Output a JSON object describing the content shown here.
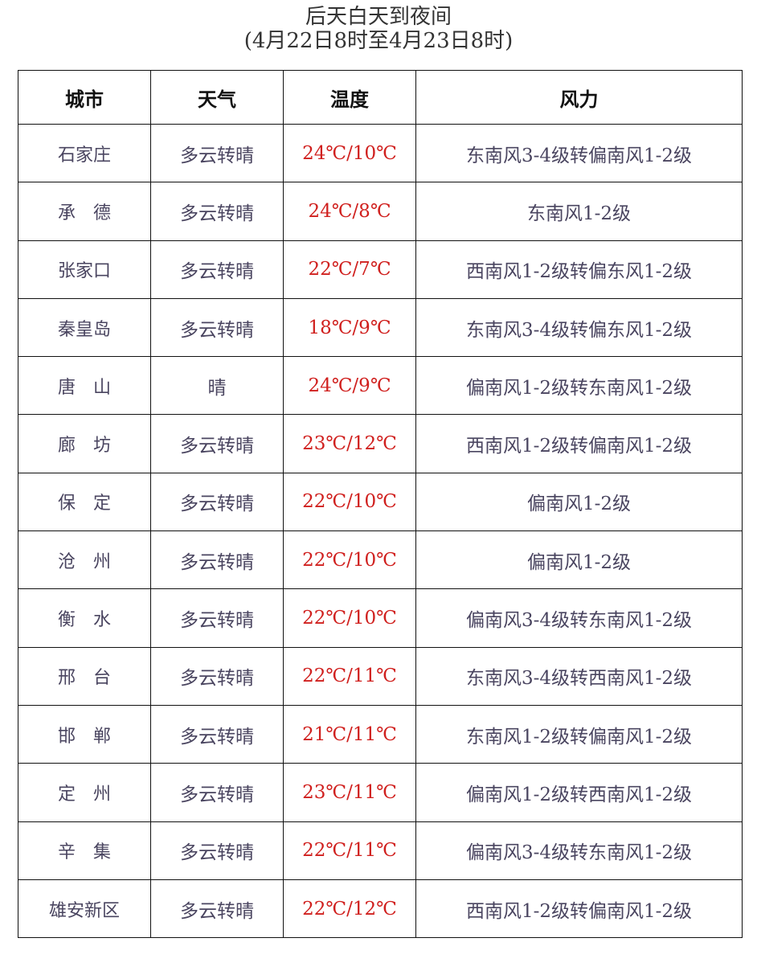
{
  "title": "后天白天到夜间",
  "subtitle": "(4月22日8时至4月23日8时)",
  "colors": {
    "temperature": "#d0201e",
    "text": "#4a4560",
    "border": "#111111"
  },
  "table": {
    "headers": [
      "城市",
      "天气",
      "温度",
      "风力"
    ],
    "rows": [
      {
        "city": "石家庄",
        "weather": "多云转晴",
        "temp": "24℃/10℃",
        "wind": "东南风3-4级转偏南风1-2级"
      },
      {
        "city": "承　德",
        "weather": "多云转晴",
        "temp": "24℃/8℃",
        "wind": "东南风1-2级"
      },
      {
        "city": "张家口",
        "weather": "多云转晴",
        "temp": "22℃/7℃",
        "wind": "西南风1-2级转偏东风1-2级"
      },
      {
        "city": "秦皇岛",
        "weather": "多云转晴",
        "temp": "18℃/9℃",
        "wind": "东南风3-4级转偏东风1-2级"
      },
      {
        "city": "唐　山",
        "weather": "晴",
        "temp": "24℃/9℃",
        "wind": "偏南风1-2级转东南风1-2级"
      },
      {
        "city": "廊　坊",
        "weather": "多云转晴",
        "temp": "23℃/12℃",
        "wind": "西南风1-2级转偏南风1-2级"
      },
      {
        "city": "保　定",
        "weather": "多云转晴",
        "temp": "22℃/10℃",
        "wind": "偏南风1-2级"
      },
      {
        "city": "沧　州",
        "weather": "多云转晴",
        "temp": "22℃/10℃",
        "wind": "偏南风1-2级"
      },
      {
        "city": "衡　水",
        "weather": "多云转晴",
        "temp": "22℃/10℃",
        "wind": "偏南风3-4级转东南风1-2级"
      },
      {
        "city": "邢　台",
        "weather": "多云转晴",
        "temp": "22℃/11℃",
        "wind": "东南风3-4级转西南风1-2级"
      },
      {
        "city": "邯　郸",
        "weather": "多云转晴",
        "temp": "21℃/11℃",
        "wind": "东南风1-2级转偏南风1-2级"
      },
      {
        "city": "定　州",
        "weather": "多云转晴",
        "temp": "23℃/11℃",
        "wind": "偏南风1-2级转西南风1-2级"
      },
      {
        "city": "辛　集",
        "weather": "多云转晴",
        "temp": "22℃/11℃",
        "wind": "偏南风3-4级转东南风1-2级"
      },
      {
        "city": "雄安新区",
        "weather": "多云转晴",
        "temp": "22℃/12℃",
        "wind": "西南风1-2级转偏南风1-2级"
      }
    ]
  }
}
